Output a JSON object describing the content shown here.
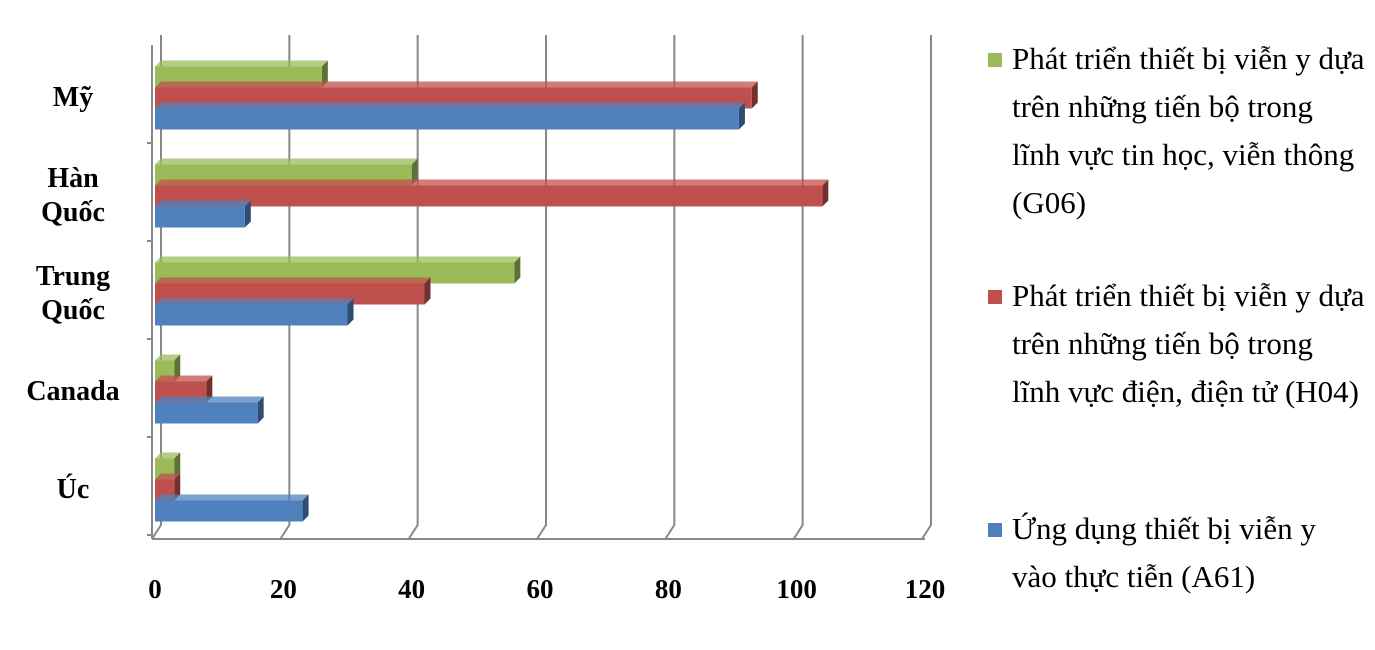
{
  "chart_data": {
    "type": "bar",
    "orientation": "horizontal",
    "categories": [
      "Úc",
      "Canada",
      "Trung Quốc",
      "Hàn Quốc",
      "Mỹ"
    ],
    "series": [
      {
        "name": "Phát triển thiết bị viễn y dựa trên những tiến bộ trong lĩnh vực tin học, viễn thông (G06)",
        "color": "#9bbb59",
        "values": [
          3,
          3,
          56,
          40,
          26
        ]
      },
      {
        "name": "Phát triển thiết bị viễn y dựa trên những tiến bộ trong lĩnh vực điện, điện tử (H04)",
        "color": "#c0504d",
        "values": [
          3,
          8,
          42,
          104,
          93
        ]
      },
      {
        "name": "Ứng dụng thiết bị viễn y vào thực tiễn (A61)",
        "color": "#4f81bd",
        "values": [
          23,
          16,
          30,
          14,
          91
        ]
      }
    ],
    "xlim": [
      0,
      120
    ],
    "xticks": [
      0,
      20,
      40,
      60,
      80,
      100,
      120
    ],
    "grid": true,
    "legend": "right"
  }
}
